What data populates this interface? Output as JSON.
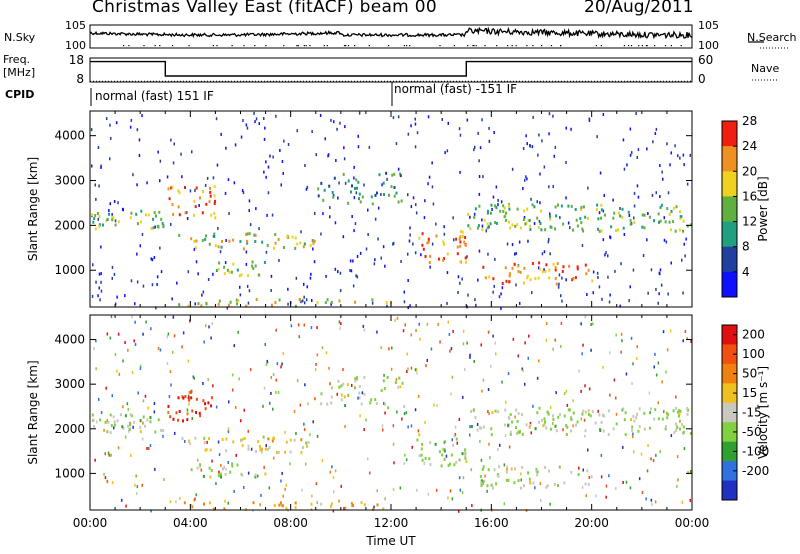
{
  "header": {
    "title": "Christmas Valley East (fitACF) beam 00",
    "date": "20/Aug/2011"
  },
  "left_labels": {
    "nsky": "N.Sky",
    "freq": "Freq.",
    "mhz": "[MHz]",
    "cpid": "CPID"
  },
  "right_labels": {
    "nsearch": "N.Search",
    "nave": "Nave"
  },
  "cpid_labels": [
    "normal (fast) 151 IF",
    "normal (fast) -151 IF"
  ],
  "chart_data": [
    {
      "type": "line",
      "panel": "noise",
      "y_left_ticks": [
        "10^5",
        "10^0"
      ],
      "y_right_ticks": [
        "10^5",
        "10^0"
      ]
    },
    {
      "type": "line",
      "panel": "frequency",
      "y_left_ticks": [
        "18",
        "8"
      ],
      "y_right_ticks": [
        "60",
        "0"
      ],
      "x": [
        0,
        3,
        3,
        15,
        15,
        24
      ],
      "freq_mhz": [
        16.5,
        16.5,
        10.5,
        10.5,
        16.5,
        16.5
      ],
      "nave_level": 2
    },
    {
      "type": "heatmap",
      "panel": "power",
      "ylabel": "Slant Range [km]",
      "ylim": [
        180,
        4550
      ],
      "y_ticks": [
        1000,
        2000,
        3000,
        4000
      ],
      "colorbar_label": "Power [dB]",
      "colorbar_ticks": [
        "4",
        "8",
        "12",
        "16",
        "20",
        "24",
        "28"
      ],
      "colors": [
        "#1010ff",
        "#2040a0",
        "#20a080",
        "#60b040",
        "#f0d020",
        "#f09020",
        "#f02010"
      ]
    },
    {
      "type": "heatmap",
      "panel": "velocity",
      "ylabel": "Slant Range [km]",
      "ylim": [
        180,
        4550
      ],
      "y_ticks": [
        1000,
        2000,
        3000,
        4000
      ],
      "colorbar_label": "Velocity [m s^-1]",
      "colorbar_ticks": [
        "200",
        "100",
        "50",
        "15",
        "-15",
        "-50",
        "-100",
        "-200"
      ],
      "colors": [
        "#2030c0",
        "#3070e0",
        "#30a030",
        "#80d040",
        "#c8c8c0",
        "#f0c020",
        "#f08010",
        "#f05010",
        "#e01010"
      ]
    }
  ],
  "x_axis": {
    "label": "Time UT",
    "ticks": [
      "00:00",
      "04:00",
      "08:00",
      "12:00",
      "16:00",
      "20:00",
      "00:00"
    ]
  }
}
